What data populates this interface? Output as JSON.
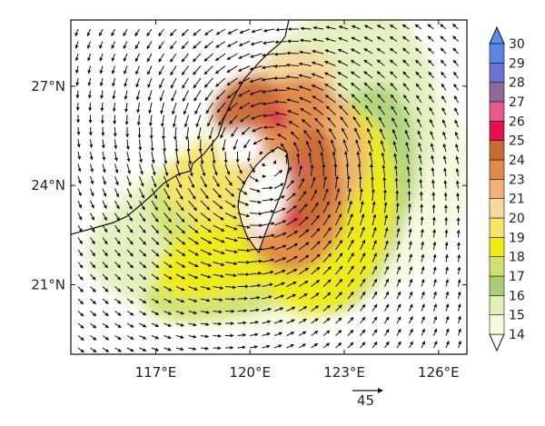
{
  "map": {
    "lon_ticks": [
      {
        "value": 117,
        "label": "117°E"
      },
      {
        "value": 120,
        "label": "120°E"
      },
      {
        "value": 123,
        "label": "123°E"
      },
      {
        "value": 126,
        "label": "126°E"
      }
    ],
    "lat_ticks": [
      {
        "value": 21,
        "label": "21°N"
      },
      {
        "value": 24,
        "label": "24°N"
      },
      {
        "value": 27,
        "label": "27°N"
      }
    ],
    "extent": {
      "lon": [
        114.3,
        126.9
      ],
      "lat": [
        18.9,
        29
      ]
    },
    "reference_vector": {
      "label": "45",
      "magnitude": 45
    },
    "field_description": "wind speed shading with wind vectors, typhoon circulation centered near Taiwan",
    "storm_center": {
      "lon": 120.55,
      "lat": 24.8
    }
  },
  "colorbar": {
    "levels": [
      14,
      15,
      16,
      17,
      18,
      19,
      20,
      21,
      23,
      24,
      25,
      26,
      27,
      28,
      29,
      30
    ],
    "labels": [
      "14",
      "15",
      "16",
      "17",
      "18",
      "19",
      "20",
      "21",
      "23",
      "24",
      "25",
      "26",
      "27",
      "28",
      "29",
      "30"
    ],
    "colors": [
      "#f6f9dc",
      "#e1efb9",
      "#a9cf72",
      "#d2e06f",
      "#eeeb16",
      "#f6e36a",
      "#f7d79b",
      "#eeb274",
      "#e0894c",
      "#c96a36",
      "#e2114c",
      "#e85a8e",
      "#8c6999",
      "#6b75d0",
      "#5b86e5"
    ],
    "under_color": "#ffffff",
    "over_color": "#5b8fe8"
  }
}
